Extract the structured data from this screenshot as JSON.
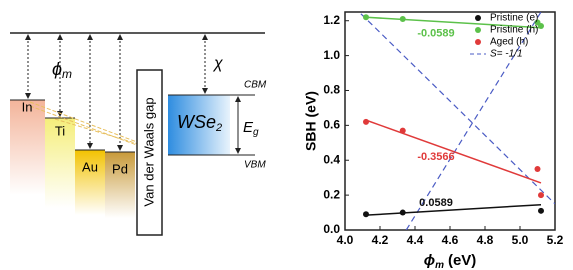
{
  "diagram": {
    "metals": [
      "In",
      "Ti",
      "Au",
      "Pd"
    ],
    "phi": {
      "symbol": "ϕ",
      "sub": "m"
    },
    "chi": "χ",
    "gap": "Van der Waals gap",
    "semiconductor": {
      "main": "WSe",
      "sub": "2"
    },
    "cbm": "CBM",
    "vbm": "VBM",
    "eg": {
      "symbol": "E",
      "sub": "g"
    }
  },
  "chart_data": {
    "type": "scatter",
    "x_label": {
      "symbol": "ϕ",
      "sub": "m",
      "unit": "(eV)"
    },
    "y_label": "SBH (eV)",
    "xlim": [
      4.0,
      5.2
    ],
    "xticks": [
      {
        "value": 4.0,
        "label": "4.0"
      },
      {
        "value": 4.2,
        "label": "4.2"
      },
      {
        "value": 4.4,
        "label": "4.4"
      },
      {
        "value": 4.6,
        "label": "4.6"
      },
      {
        "value": 4.8,
        "label": "4.8"
      },
      {
        "value": 5.0,
        "label": "5.0"
      },
      {
        "value": 5.2,
        "label": "5.2"
      }
    ],
    "ylim": [
      0,
      1.25
    ],
    "yticks": [
      {
        "value": 0,
        "label": "0.0"
      },
      0.2,
      0.4,
      0.6,
      0.8,
      {
        "value": 1,
        "label": "1.0"
      },
      1.2
    ],
    "series": [
      {
        "name": "Pristine (e)",
        "color": "#111111",
        "x": [
          4.12,
          4.33,
          5.12
        ],
        "values": [
          0.09,
          0.1,
          0.11
        ],
        "fit": {
          "color": "#111111",
          "label": "0.0589",
          "x": [
            4.12,
            5.12
          ],
          "values": [
            0.085,
            0.145
          ]
        }
      },
      {
        "name": "Pristine (h)",
        "color": "#5cc14a",
        "x": [
          4.12,
          4.33,
          5.1,
          5.12
        ],
        "values": [
          1.22,
          1.21,
          1.19,
          1.17
        ],
        "fit": {
          "color": "#5cc14a",
          "label": "-0.0589",
          "x": [
            4.12,
            5.12
          ],
          "values": [
            1.22,
            1.16
          ]
        }
      },
      {
        "name": "Aged (h)",
        "color": "#e03a3a",
        "x": [
          4.12,
          4.33,
          5.1,
          5.12
        ],
        "values": [
          0.62,
          0.57,
          0.35,
          0.2
        ],
        "fit": {
          "color": "#e03a3a",
          "label": "-0.3566",
          "x": [
            4.12,
            5.12
          ],
          "values": [
            0.63,
            0.27
          ]
        }
      }
    ],
    "guides": [
      {
        "name": "S= -1/1",
        "color": "#4a5bc4",
        "x": [
          4.05,
          5.2
        ],
        "values": [
          1.28,
          0.15
        ]
      },
      {
        "color": "#4a5bc4",
        "x": [
          4.35,
          5.12
        ],
        "values": [
          0,
          1.25
        ]
      }
    ]
  }
}
